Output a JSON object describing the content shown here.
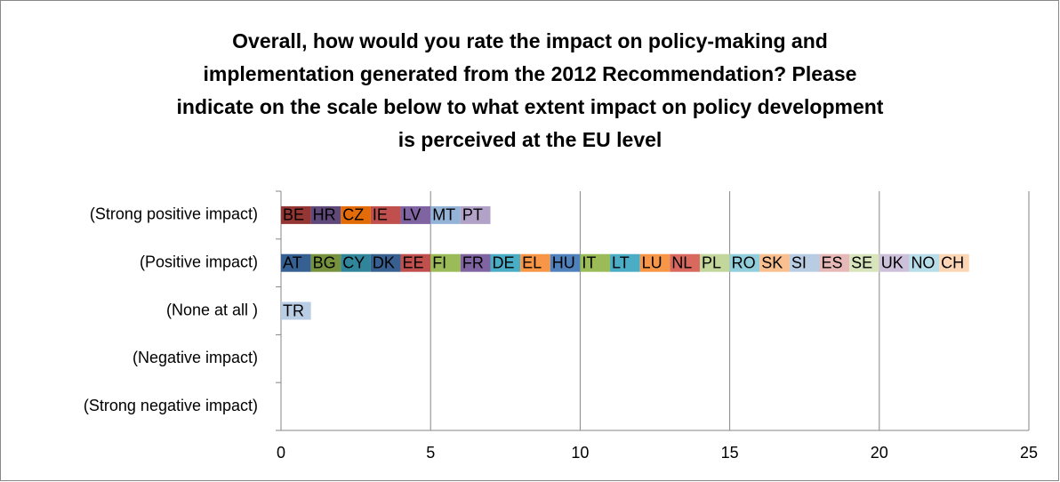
{
  "chart_data": {
    "type": "stacked-barh",
    "title": "Overall, how would you rate the impact on policy-making and implementation generated from the 2012 Recommendation? Please indicate on the scale below to what extent impact on policy development is perceived at the EU level",
    "categories": [
      "(Strong positive impact)",
      "(Positive impact)",
      "(None at all )",
      "(Negative impact)",
      "(Strong negative impact)"
    ],
    "xlim": [
      0,
      25
    ],
    "xticks": [
      0,
      5,
      10,
      15,
      20,
      25
    ],
    "grid": true,
    "series": [
      {
        "name": "BE",
        "color": "#943634",
        "values": [
          1,
          null,
          null,
          null,
          null
        ]
      },
      {
        "name": "HR",
        "color": "#5f497a",
        "values": [
          1,
          null,
          null,
          null,
          null
        ]
      },
      {
        "name": "CZ",
        "color": "#e36c09",
        "values": [
          1,
          null,
          null,
          null,
          null
        ]
      },
      {
        "name": "IE",
        "color": "#c0504d",
        "values": [
          1,
          null,
          null,
          null,
          null
        ]
      },
      {
        "name": "LV",
        "color": "#8064a2",
        "values": [
          1,
          null,
          null,
          null,
          null
        ]
      },
      {
        "name": "MT",
        "color": "#95b3d7",
        "values": [
          1,
          null,
          null,
          null,
          null
        ]
      },
      {
        "name": "PT",
        "color": "#b2a2c7",
        "values": [
          1,
          null,
          null,
          null,
          null
        ]
      },
      {
        "name": "AT",
        "color": "#366092",
        "values": [
          null,
          1,
          null,
          null,
          null
        ]
      },
      {
        "name": "BG",
        "color": "#76923c",
        "values": [
          null,
          1,
          null,
          null,
          null
        ]
      },
      {
        "name": "CY",
        "color": "#31859b",
        "values": [
          null,
          1,
          null,
          null,
          null
        ]
      },
      {
        "name": "DK",
        "color": "#376091",
        "values": [
          null,
          1,
          null,
          null,
          null
        ]
      },
      {
        "name": "EE",
        "color": "#c0504d",
        "values": [
          null,
          1,
          null,
          null,
          null
        ]
      },
      {
        "name": "FI",
        "color": "#9bbb59",
        "values": [
          null,
          1,
          null,
          null,
          null
        ]
      },
      {
        "name": "FR",
        "color": "#8064a2",
        "values": [
          null,
          1,
          null,
          null,
          null
        ]
      },
      {
        "name": "DE",
        "color": "#4bacc6",
        "values": [
          null,
          1,
          null,
          null,
          null
        ]
      },
      {
        "name": "EL",
        "color": "#f79646",
        "values": [
          null,
          1,
          null,
          null,
          null
        ]
      },
      {
        "name": "HU",
        "color": "#4f81bd",
        "values": [
          null,
          1,
          null,
          null,
          null
        ]
      },
      {
        "name": "IT",
        "color": "#9bbb59",
        "values": [
          null,
          1,
          null,
          null,
          null
        ]
      },
      {
        "name": "LT",
        "color": "#4bacc6",
        "values": [
          null,
          1,
          null,
          null,
          null
        ]
      },
      {
        "name": "LU",
        "color": "#f79646",
        "values": [
          null,
          1,
          null,
          null,
          null
        ]
      },
      {
        "name": "NL",
        "color": "#d9695f",
        "values": [
          null,
          1,
          null,
          null,
          null
        ]
      },
      {
        "name": "PL",
        "color": "#c3d69b",
        "values": [
          null,
          1,
          null,
          null,
          null
        ]
      },
      {
        "name": "RO",
        "color": "#92cddc",
        "values": [
          null,
          1,
          null,
          null,
          null
        ]
      },
      {
        "name": "SK",
        "color": "#fabf8f",
        "values": [
          null,
          1,
          null,
          null,
          null
        ]
      },
      {
        "name": "SI",
        "color": "#b8cce4",
        "values": [
          null,
          1,
          null,
          null,
          null
        ]
      },
      {
        "name": "ES",
        "color": "#e6b9b8",
        "values": [
          null,
          1,
          null,
          null,
          null
        ]
      },
      {
        "name": "SE",
        "color": "#d7e4bc",
        "values": [
          null,
          1,
          null,
          null,
          null
        ]
      },
      {
        "name": "UK",
        "color": "#ccc0da",
        "values": [
          null,
          1,
          null,
          null,
          null
        ]
      },
      {
        "name": "NO",
        "color": "#b7dee8",
        "values": [
          null,
          1,
          null,
          null,
          null
        ]
      },
      {
        "name": "CH",
        "color": "#fcd5b4",
        "values": [
          null,
          1,
          null,
          null,
          null
        ]
      },
      {
        "name": "TR",
        "color": "#b9cde5",
        "values": [
          null,
          null,
          1,
          null,
          null
        ]
      }
    ]
  }
}
